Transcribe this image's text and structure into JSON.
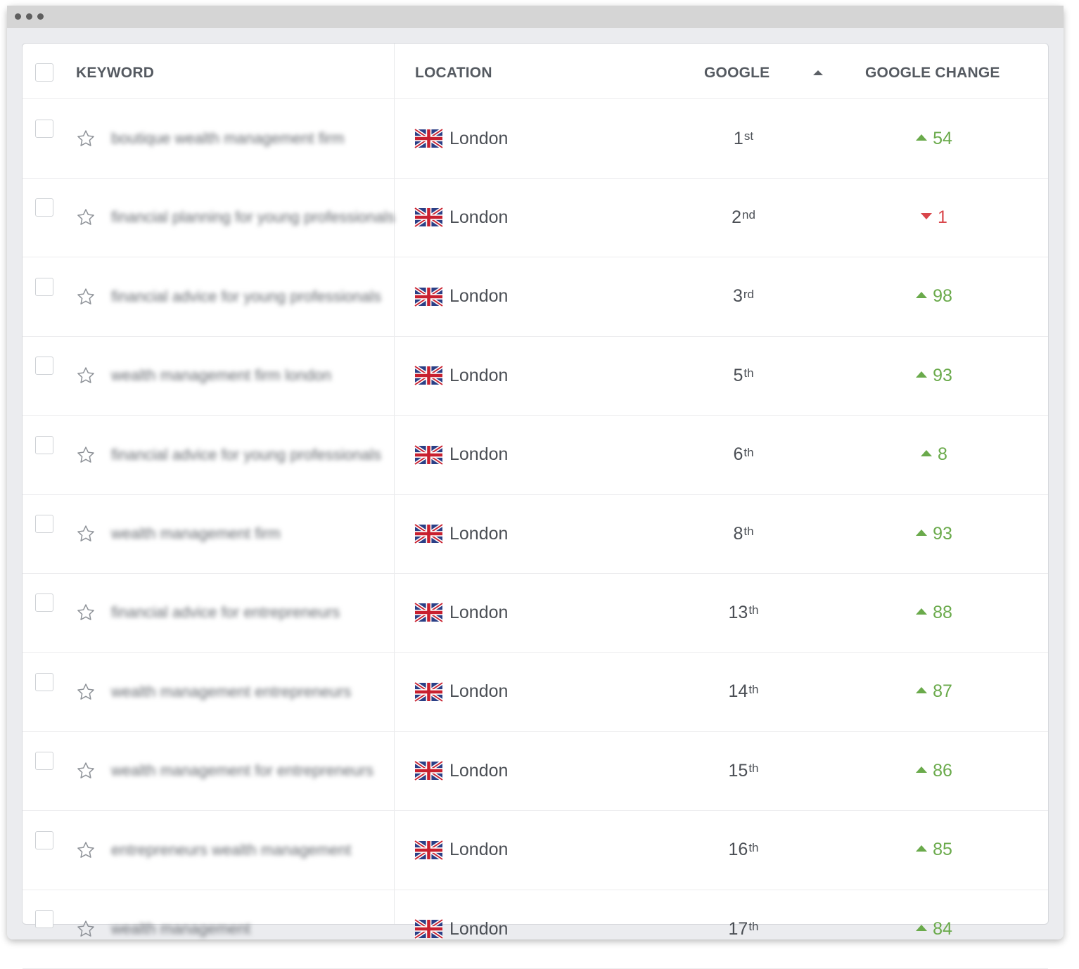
{
  "window": {
    "title_dots": [
      "dot",
      "dot",
      "dot"
    ]
  },
  "table": {
    "columns": {
      "keyword": "KEYWORD",
      "location": "LOCATION",
      "google": "GOOGLE",
      "google_change": "GOOGLE CHANGE"
    },
    "sort": {
      "column": "google",
      "direction": "ascending",
      "icon": "sort-up-icon"
    },
    "rows": [
      {
        "keyword": "boutique wealth management firm",
        "location": "London",
        "flag": "uk-flag-icon",
        "rank": "1",
        "suffix": "st",
        "change": "54",
        "direction": "up"
      },
      {
        "keyword": "financial planning for young professionals",
        "location": "London",
        "flag": "uk-flag-icon",
        "rank": "2",
        "suffix": "nd",
        "change": "1",
        "direction": "down"
      },
      {
        "keyword": "financial advice for young professionals",
        "location": "London",
        "flag": "uk-flag-icon",
        "rank": "3",
        "suffix": "rd",
        "change": "98",
        "direction": "up"
      },
      {
        "keyword": "wealth management firm london",
        "location": "London",
        "flag": "uk-flag-icon",
        "rank": "5",
        "suffix": "th",
        "change": "93",
        "direction": "up"
      },
      {
        "keyword": "financial advice for young professionals",
        "location": "London",
        "flag": "uk-flag-icon",
        "rank": "6",
        "suffix": "th",
        "change": "8",
        "direction": "up"
      },
      {
        "keyword": "wealth management firm",
        "location": "London",
        "flag": "uk-flag-icon",
        "rank": "8",
        "suffix": "th",
        "change": "93",
        "direction": "up"
      },
      {
        "keyword": "financial advice for entrepreneurs",
        "location": "London",
        "flag": "uk-flag-icon",
        "rank": "13",
        "suffix": "th",
        "change": "88",
        "direction": "up"
      },
      {
        "keyword": "wealth management entrepreneurs",
        "location": "London",
        "flag": "uk-flag-icon",
        "rank": "14",
        "suffix": "th",
        "change": "87",
        "direction": "up"
      },
      {
        "keyword": "wealth management for entrepreneurs",
        "location": "London",
        "flag": "uk-flag-icon",
        "rank": "15",
        "suffix": "th",
        "change": "86",
        "direction": "up"
      },
      {
        "keyword": "entrepreneurs wealth management",
        "location": "London",
        "flag": "uk-flag-icon",
        "rank": "16",
        "suffix": "th",
        "change": "85",
        "direction": "up"
      },
      {
        "keyword": "wealth management",
        "location": "London",
        "flag": "uk-flag-icon",
        "rank": "17",
        "suffix": "th",
        "change": "84",
        "direction": "up"
      }
    ]
  },
  "colors": {
    "up": "#6aaa4b",
    "down": "#d9454a"
  }
}
